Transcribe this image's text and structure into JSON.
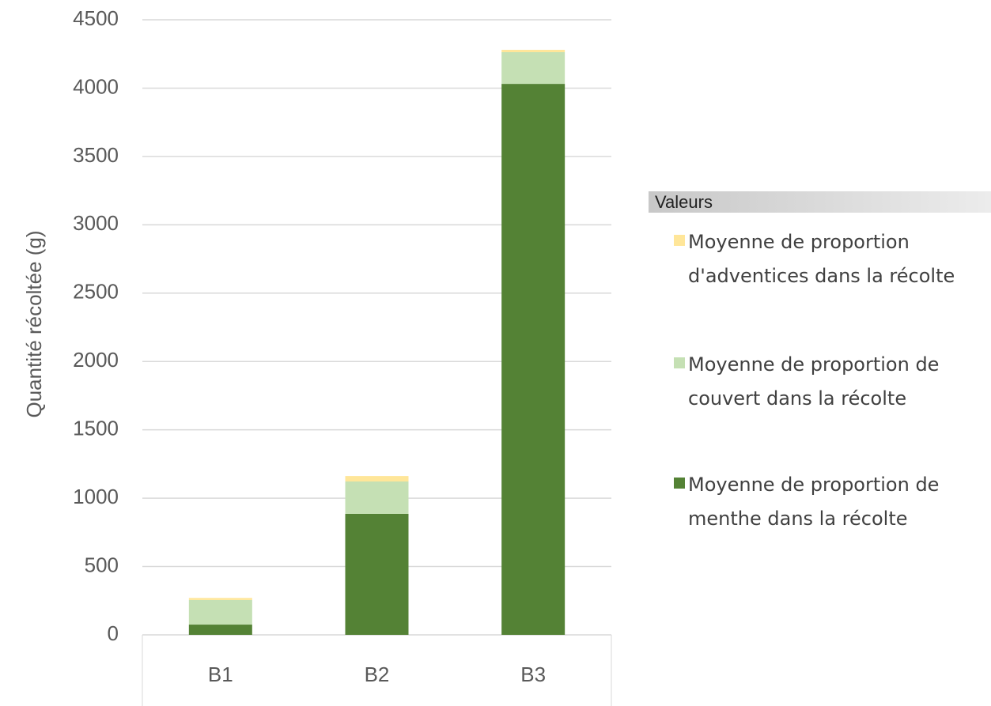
{
  "chart_data": {
    "type": "stacked_bar",
    "y_label": "Quantité récoltée (g)",
    "categories": [
      "B1",
      "B2",
      "B3"
    ],
    "series": [
      {
        "name": "Moyenne de proportion de menthe dans la récolte",
        "color": "#548235",
        "values": [
          75,
          885,
          4031
        ]
      },
      {
        "name": "Moyenne de proportion de couvert dans la récolte",
        "color": "#c5e0b4",
        "values": [
          180,
          237,
          232
        ]
      },
      {
        "name": "Moyenne de proportion d'adventices dans la récolte",
        "color": "#ffe699",
        "values": [
          15,
          40,
          17
        ]
      }
    ],
    "legend_title": "Valeurs",
    "ylim": [
      0,
      4500
    ],
    "yticks": [
      0,
      500,
      1000,
      1500,
      2000,
      2500,
      3000,
      3500,
      4000,
      4500
    ],
    "grid": true
  }
}
